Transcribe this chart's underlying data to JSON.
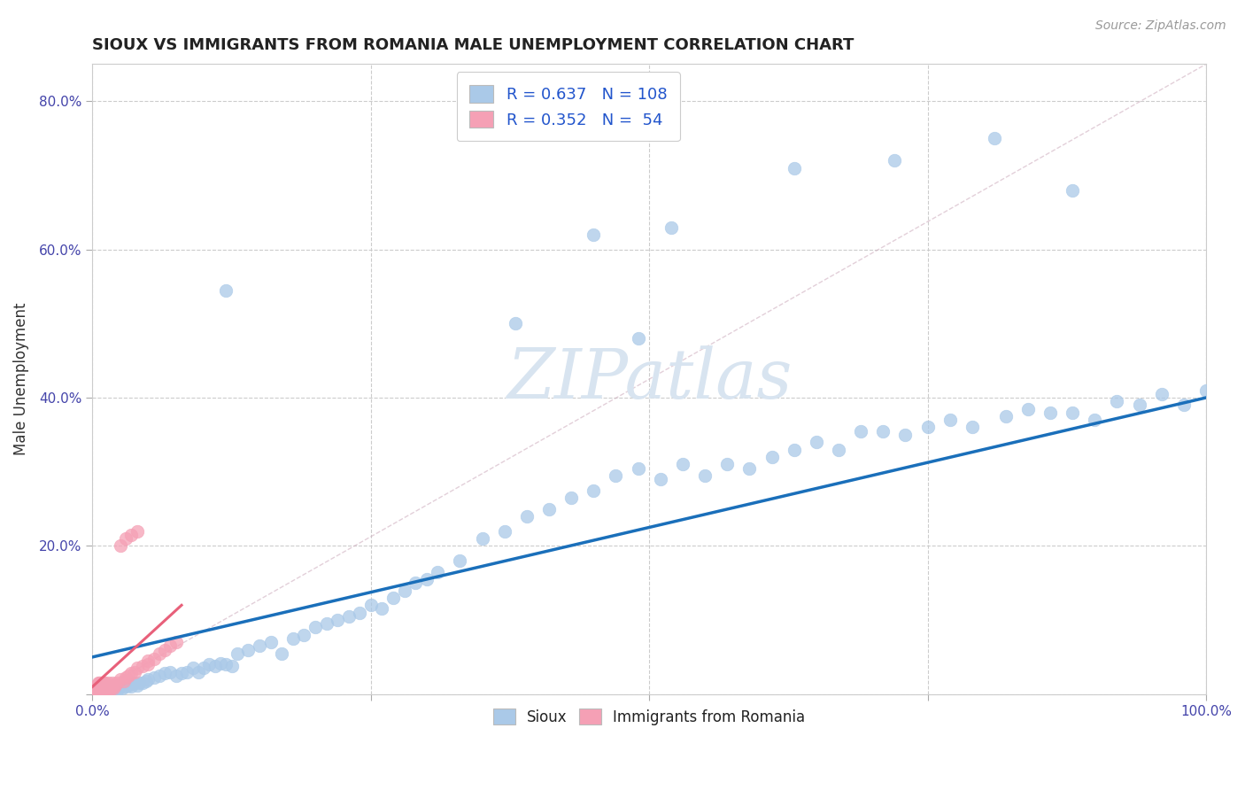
{
  "title": "SIOUX VS IMMIGRANTS FROM ROMANIA MALE UNEMPLOYMENT CORRELATION CHART",
  "source": "Source: ZipAtlas.com",
  "ylabel": "Male Unemployment",
  "xlim": [
    0.0,
    1.0
  ],
  "ylim": [
    0.0,
    0.85
  ],
  "legend1_r": "0.637",
  "legend1_n": "108",
  "legend2_r": "0.352",
  "legend2_n": "54",
  "sioux_color": "#aac9e8",
  "romania_color": "#f5a0b5",
  "trend_sioux_color": "#1a6fba",
  "trend_romania_color": "#e8607a",
  "trend_dashed_color": "#e0b0c0",
  "background_color": "#ffffff",
  "watermark_color": "#d8e4f0",
  "sioux_x": [
    0.003,
    0.005,
    0.006,
    0.007,
    0.008,
    0.009,
    0.01,
    0.011,
    0.012,
    0.013,
    0.014,
    0.015,
    0.016,
    0.017,
    0.018,
    0.019,
    0.02,
    0.021,
    0.022,
    0.023,
    0.025,
    0.027,
    0.03,
    0.032,
    0.035,
    0.038,
    0.04,
    0.042,
    0.045,
    0.048,
    0.05,
    0.055,
    0.06,
    0.065,
    0.07,
    0.075,
    0.08,
    0.085,
    0.09,
    0.095,
    0.1,
    0.105,
    0.11,
    0.115,
    0.12,
    0.125,
    0.13,
    0.14,
    0.15,
    0.16,
    0.17,
    0.18,
    0.19,
    0.2,
    0.21,
    0.22,
    0.23,
    0.24,
    0.25,
    0.26,
    0.27,
    0.28,
    0.29,
    0.3,
    0.31,
    0.33,
    0.35,
    0.37,
    0.39,
    0.41,
    0.43,
    0.45,
    0.47,
    0.49,
    0.51,
    0.53,
    0.55,
    0.57,
    0.59,
    0.61,
    0.63,
    0.65,
    0.67,
    0.69,
    0.71,
    0.73,
    0.75,
    0.77,
    0.79,
    0.82,
    0.84,
    0.86,
    0.88,
    0.9,
    0.92,
    0.94,
    0.96,
    0.98,
    1.0,
    0.49,
    0.12,
    0.38,
    0.45,
    0.52,
    0.63,
    0.72,
    0.81,
    0.88
  ],
  "sioux_y": [
    0.01,
    0.01,
    0.005,
    0.01,
    0.008,
    0.005,
    0.01,
    0.008,
    0.01,
    0.005,
    0.008,
    0.01,
    0.005,
    0.008,
    0.01,
    0.005,
    0.008,
    0.01,
    0.005,
    0.01,
    0.01,
    0.008,
    0.01,
    0.012,
    0.01,
    0.015,
    0.012,
    0.015,
    0.015,
    0.018,
    0.02,
    0.022,
    0.025,
    0.028,
    0.03,
    0.025,
    0.028,
    0.03,
    0.035,
    0.03,
    0.035,
    0.04,
    0.038,
    0.042,
    0.04,
    0.038,
    0.055,
    0.06,
    0.065,
    0.07,
    0.055,
    0.075,
    0.08,
    0.09,
    0.095,
    0.1,
    0.105,
    0.11,
    0.12,
    0.115,
    0.13,
    0.14,
    0.15,
    0.155,
    0.165,
    0.18,
    0.21,
    0.22,
    0.24,
    0.25,
    0.265,
    0.275,
    0.295,
    0.305,
    0.29,
    0.31,
    0.295,
    0.31,
    0.305,
    0.32,
    0.33,
    0.34,
    0.33,
    0.355,
    0.355,
    0.35,
    0.36,
    0.37,
    0.36,
    0.375,
    0.385,
    0.38,
    0.38,
    0.37,
    0.395,
    0.39,
    0.405,
    0.39,
    0.41,
    0.48,
    0.545,
    0.5,
    0.62,
    0.63,
    0.71,
    0.72,
    0.75,
    0.68
  ],
  "romania_x": [
    0.002,
    0.003,
    0.003,
    0.004,
    0.004,
    0.005,
    0.005,
    0.005,
    0.006,
    0.006,
    0.006,
    0.007,
    0.007,
    0.007,
    0.008,
    0.008,
    0.008,
    0.009,
    0.009,
    0.01,
    0.01,
    0.011,
    0.011,
    0.012,
    0.012,
    0.013,
    0.014,
    0.015,
    0.015,
    0.016,
    0.017,
    0.018,
    0.019,
    0.02,
    0.022,
    0.025,
    0.028,
    0.03,
    0.032,
    0.035,
    0.038,
    0.04,
    0.045,
    0.05,
    0.05,
    0.055,
    0.06,
    0.065,
    0.07,
    0.075,
    0.025,
    0.03,
    0.035,
    0.04
  ],
  "romania_y": [
    0.005,
    0.005,
    0.01,
    0.008,
    0.012,
    0.005,
    0.01,
    0.015,
    0.005,
    0.01,
    0.015,
    0.005,
    0.01,
    0.015,
    0.005,
    0.01,
    0.015,
    0.005,
    0.01,
    0.005,
    0.015,
    0.008,
    0.015,
    0.005,
    0.012,
    0.01,
    0.015,
    0.005,
    0.012,
    0.008,
    0.01,
    0.015,
    0.008,
    0.012,
    0.015,
    0.02,
    0.018,
    0.022,
    0.025,
    0.028,
    0.03,
    0.035,
    0.038,
    0.04,
    0.045,
    0.048,
    0.055,
    0.06,
    0.065,
    0.07,
    0.2,
    0.21,
    0.215,
    0.22
  ],
  "sioux_trend_x0": 0.0,
  "sioux_trend_y0": 0.05,
  "sioux_trend_x1": 1.0,
  "sioux_trend_y1": 0.4,
  "romania_trend_x0": 0.0,
  "romania_trend_y0": 0.01,
  "romania_trend_x1": 0.08,
  "romania_trend_y1": 0.12
}
